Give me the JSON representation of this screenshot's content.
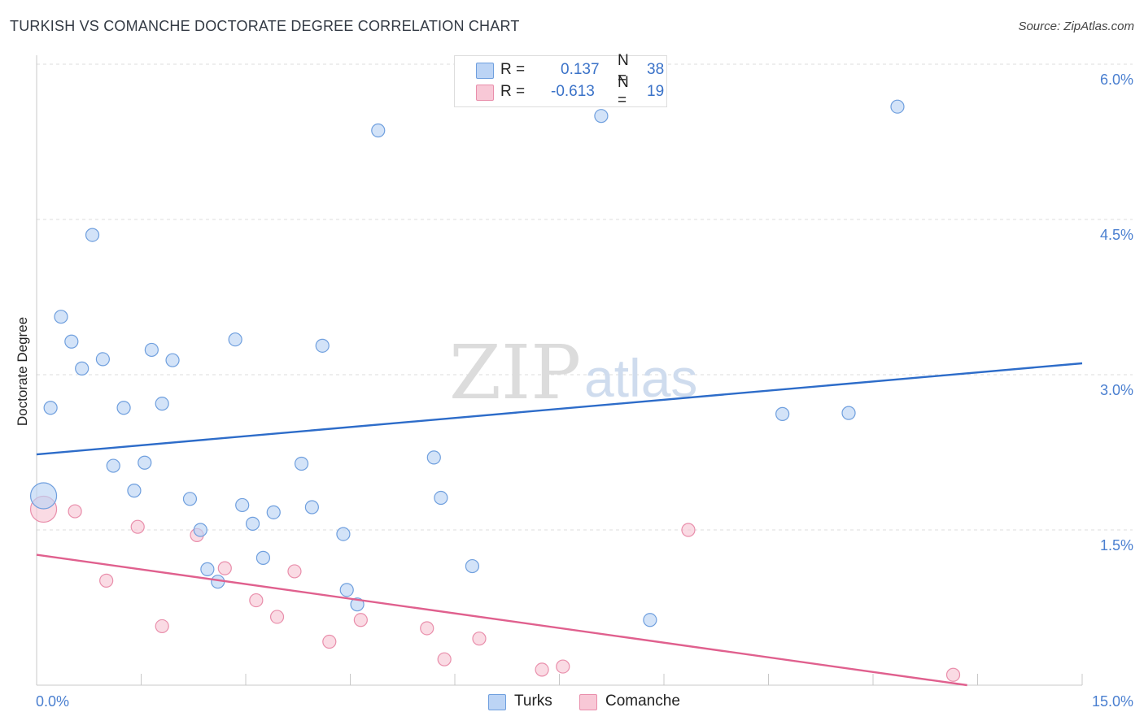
{
  "title": "TURKISH VS COMANCHE DOCTORATE DEGREE CORRELATION CHART",
  "source": "Source: ZipAtlas.com",
  "watermark": {
    "zip": "ZIP",
    "atlas": "atlas"
  },
  "colors": {
    "turks_fill": "#bcd4f5",
    "turks_stroke": "#6f9fde",
    "turks_line": "#2d6cc9",
    "comanche_fill": "#f8c8d6",
    "comanche_stroke": "#e98eab",
    "comanche_line": "#e0608e",
    "tick_text": "#4a7fd0"
  },
  "legend": {
    "rows": [
      {
        "r_label": "R = ",
        "r_value": "0.137",
        "n_label": "N = ",
        "n_value": "38"
      },
      {
        "r_label": "R = ",
        "r_value": "-0.613",
        "n_label": "N = ",
        "n_value": "19"
      }
    ]
  },
  "bottom_legend": {
    "turks": "Turks",
    "comanche": "Comanche"
  },
  "chart_data": {
    "type": "scatter",
    "title": "TURKISH VS COMANCHE DOCTORATE DEGREE CORRELATION CHART",
    "xlabel": "",
    "ylabel": "Doctorate Degree",
    "xlim": [
      0,
      15
    ],
    "ylim": [
      0,
      6.0
    ],
    "x_tick_labels": [
      "0.0%",
      "15.0%"
    ],
    "y_ticks": [
      1.5,
      3.0,
      4.5,
      6.0
    ],
    "y_tick_labels": [
      "1.5%",
      "3.0%",
      "4.5%",
      "6.0%"
    ],
    "grid": true,
    "legend_position": "top-center",
    "series": [
      {
        "name": "Turks",
        "points": [
          {
            "x": 0.1,
            "y": 1.83,
            "big": true
          },
          {
            "x": 0.2,
            "y": 2.68
          },
          {
            "x": 0.35,
            "y": 3.56
          },
          {
            "x": 0.5,
            "y": 3.32
          },
          {
            "x": 0.65,
            "y": 3.06
          },
          {
            "x": 0.8,
            "y": 4.35
          },
          {
            "x": 0.95,
            "y": 3.15
          },
          {
            "x": 1.1,
            "y": 2.12
          },
          {
            "x": 1.25,
            "y": 2.68
          },
          {
            "x": 1.4,
            "y": 1.88
          },
          {
            "x": 1.55,
            "y": 2.15
          },
          {
            "x": 1.65,
            "y": 3.24
          },
          {
            "x": 1.8,
            "y": 2.72
          },
          {
            "x": 1.95,
            "y": 3.14
          },
          {
            "x": 2.2,
            "y": 1.8
          },
          {
            "x": 2.35,
            "y": 1.5
          },
          {
            "x": 2.45,
            "y": 1.12
          },
          {
            "x": 2.6,
            "y": 1.0
          },
          {
            "x": 2.85,
            "y": 3.34
          },
          {
            "x": 2.95,
            "y": 1.74
          },
          {
            "x": 3.1,
            "y": 1.56
          },
          {
            "x": 3.25,
            "y": 1.23
          },
          {
            "x": 3.4,
            "y": 1.67
          },
          {
            "x": 3.8,
            "y": 2.14
          },
          {
            "x": 3.95,
            "y": 1.72
          },
          {
            "x": 4.1,
            "y": 3.28
          },
          {
            "x": 4.4,
            "y": 1.46
          },
          {
            "x": 4.45,
            "y": 0.92
          },
          {
            "x": 4.6,
            "y": 0.78
          },
          {
            "x": 4.9,
            "y": 5.36
          },
          {
            "x": 5.7,
            "y": 2.2
          },
          {
            "x": 5.8,
            "y": 1.81
          },
          {
            "x": 6.25,
            "y": 1.15
          },
          {
            "x": 8.1,
            "y": 5.5
          },
          {
            "x": 8.8,
            "y": 0.63
          },
          {
            "x": 10.7,
            "y": 2.62
          },
          {
            "x": 11.65,
            "y": 2.63
          },
          {
            "x": 12.35,
            "y": 5.59
          }
        ],
        "trend": {
          "x": [
            0,
            15
          ],
          "y": [
            2.23,
            3.11
          ]
        }
      },
      {
        "name": "Comanche",
        "points": [
          {
            "x": 0.1,
            "y": 1.7,
            "big": true
          },
          {
            "x": 0.55,
            "y": 1.68
          },
          {
            "x": 1.0,
            "y": 1.01
          },
          {
            "x": 1.45,
            "y": 1.53
          },
          {
            "x": 1.8,
            "y": 0.57
          },
          {
            "x": 2.3,
            "y": 1.45
          },
          {
            "x": 2.7,
            "y": 1.13
          },
          {
            "x": 3.15,
            "y": 0.82
          },
          {
            "x": 3.45,
            "y": 0.66
          },
          {
            "x": 3.7,
            "y": 1.1
          },
          {
            "x": 4.2,
            "y": 0.42
          },
          {
            "x": 4.65,
            "y": 0.63
          },
          {
            "x": 5.6,
            "y": 0.55
          },
          {
            "x": 5.85,
            "y": 0.25
          },
          {
            "x": 6.35,
            "y": 0.45
          },
          {
            "x": 7.25,
            "y": 0.15
          },
          {
            "x": 7.55,
            "y": 0.18
          },
          {
            "x": 9.35,
            "y": 1.5
          },
          {
            "x": 13.15,
            "y": 0.1
          }
        ],
        "trend": {
          "x": [
            0,
            13.35
          ],
          "y": [
            1.26,
            0.0
          ]
        }
      }
    ]
  }
}
